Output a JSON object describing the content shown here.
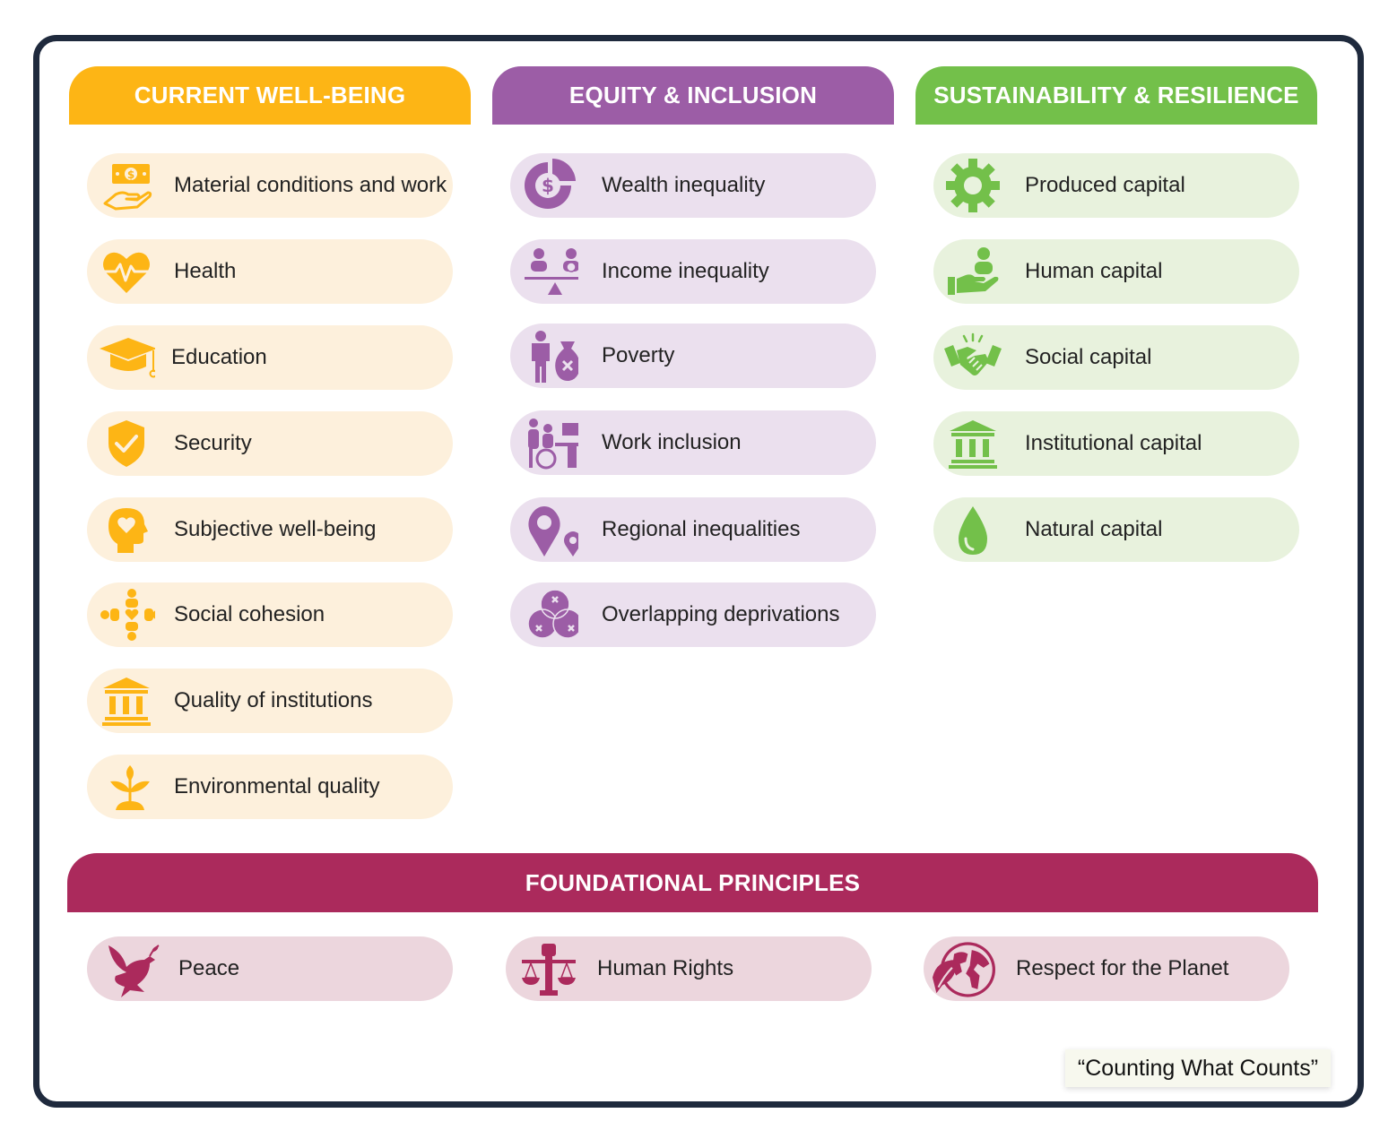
{
  "colors": {
    "wellbeing": "#fdb515",
    "equity": "#9c5da6",
    "sustainability": "#73c04a",
    "foundational": "#ab2a5c"
  },
  "columns": {
    "wellbeing": {
      "title": "CURRENT WELL-BEING",
      "items": [
        {
          "label": "Material conditions and work",
          "icon": "money-hand-icon"
        },
        {
          "label": "Health",
          "icon": "heart-pulse-icon"
        },
        {
          "label": "Education",
          "icon": "graduation-cap-icon"
        },
        {
          "label": "Security",
          "icon": "shield-check-icon"
        },
        {
          "label": "Subjective well-being",
          "icon": "head-heart-icon"
        },
        {
          "label": "Social cohesion",
          "icon": "people-circle-icon"
        },
        {
          "label": "Quality of institutions",
          "icon": "institution-icon"
        },
        {
          "label": "Environmental quality",
          "icon": "plant-icon"
        }
      ]
    },
    "equity": {
      "title": "EQUITY & INCLUSION",
      "items": [
        {
          "label": "Wealth inequality",
          "icon": "pie-dollar-icon"
        },
        {
          "label": "Income inequality",
          "icon": "balance-people-icon"
        },
        {
          "label": "Poverty",
          "icon": "person-empty-bag-icon"
        },
        {
          "label": "Work inclusion",
          "icon": "wheelchair-desk-icon"
        },
        {
          "label": "Regional inequalities",
          "icon": "map-pins-icon"
        },
        {
          "label": "Overlapping deprivations",
          "icon": "venn-icon"
        }
      ]
    },
    "sustainability": {
      "title": "SUSTAINABILITY & RESILIENCE",
      "items": [
        {
          "label": "Produced capital",
          "icon": "gear-icon"
        },
        {
          "label": "Human capital",
          "icon": "hand-person-icon"
        },
        {
          "label": "Social capital",
          "icon": "handshake-icon"
        },
        {
          "label": "Institutional capital",
          "icon": "institution-icon"
        },
        {
          "label": "Natural capital",
          "icon": "water-drop-icon"
        }
      ]
    }
  },
  "foundational": {
    "title": "FOUNDATIONAL PRINCIPLES",
    "items": [
      {
        "label": "Peace",
        "icon": "dove-icon"
      },
      {
        "label": "Human Rights",
        "icon": "fist-scales-icon"
      },
      {
        "label": "Respect for the Planet",
        "icon": "globe-leaf-icon"
      }
    ]
  },
  "quote": "“Counting What Counts”"
}
